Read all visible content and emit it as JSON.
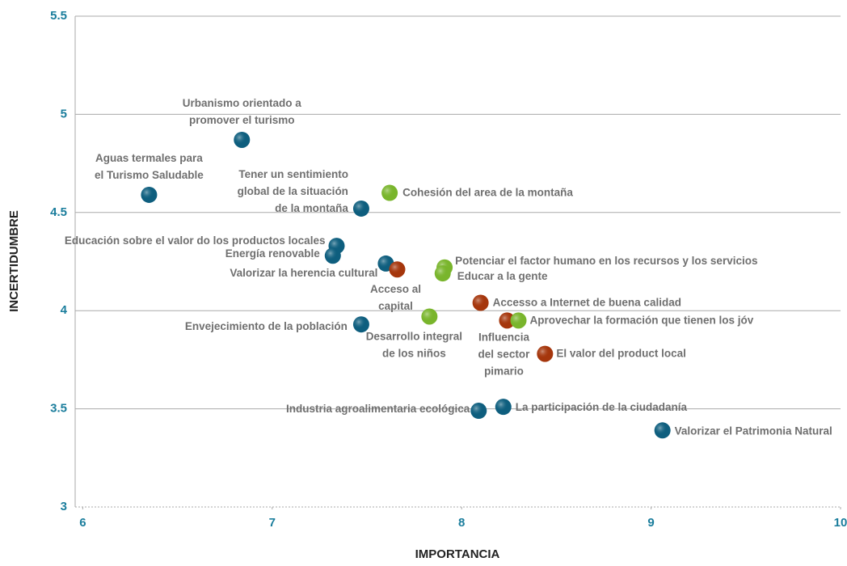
{
  "chart_data": {
    "type": "scatter",
    "xlabel": "IMPORTANCIA",
    "ylabel": "INCERTIDUMBRE",
    "xlim": [
      5.96,
      10
    ],
    "xticks": [
      6,
      7,
      8,
      9,
      10
    ],
    "ylim": [
      3,
      5.5
    ],
    "yticks": [
      3,
      3.5,
      4,
      4.5,
      5,
      5.5
    ],
    "grid": true,
    "labels": [
      "Urbanismo orientado a\npromover el turismo",
      "Aguas termales para\nel Turismo Saludable",
      "Tener un sentimiento\nglobal de la situación\nde la montaña",
      "Cohesión del area de la montaña",
      "Educación sobre el valor do los productos locales",
      "Energía renovable",
      "Valorizar la herencia cultural",
      "Acceso al\ncapital",
      "Potenciar el factor humano en los recursos y los servicios",
      "Educar a la gente",
      "Accesso a Internet de buena calidad",
      "Desarrollo integral\nde los niños",
      "Envejecimiento de la población",
      "Influencia\ndel sector\npimario",
      "Aprovechar la formación que tienen los jóv",
      "El valor del product local",
      "La participación de la ciudadanía",
      "Industria agroalimentaria ecológica",
      "Valorizar el Patrimonia Natural"
    ],
    "x": [
      6.84,
      6.35,
      7.47,
      7.62,
      7.34,
      7.32,
      7.6,
      7.66,
      7.91,
      7.9,
      8.1,
      7.83,
      7.47,
      8.24,
      8.3,
      8.44,
      8.22,
      8.09,
      9.06
    ],
    "y": [
      4.87,
      4.59,
      4.52,
      4.6,
      4.33,
      4.28,
      4.24,
      4.21,
      4.22,
      4.19,
      4.04,
      3.97,
      3.93,
      3.95,
      3.95,
      3.78,
      3.51,
      3.49,
      3.39
    ],
    "colors": [
      "#0e5e7e",
      "#0e5e7e",
      "#0e5e7e",
      "#79b52c",
      "#0e5e7e",
      "#0e5e7e",
      "#0e5e7e",
      "#a5360c",
      "#79b52c",
      "#79b52c",
      "#a5360c",
      "#79b52c",
      "#0e5e7e",
      "#a5360c",
      "#79b52c",
      "#a5360c",
      "#0e5e7e",
      "#0e5e7e",
      "#0e5e7e"
    ]
  }
}
